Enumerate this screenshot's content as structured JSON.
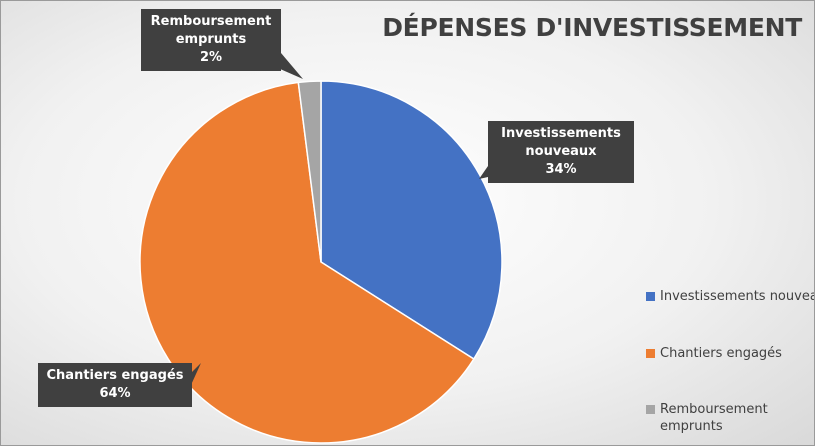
{
  "chart_data": {
    "type": "pie",
    "title": "DÉPENSES D'INVESTISSEMENT",
    "categories": [
      "Investissements nouveaux",
      "Chantiers engagés",
      "Remboursement emprunts"
    ],
    "values": [
      34,
      64,
      2
    ],
    "value_labels": [
      "34%",
      "64%",
      "2%"
    ],
    "colors": [
      "#4472c4",
      "#ed7d31",
      "#a5a5a5"
    ],
    "legend": "right"
  }
}
